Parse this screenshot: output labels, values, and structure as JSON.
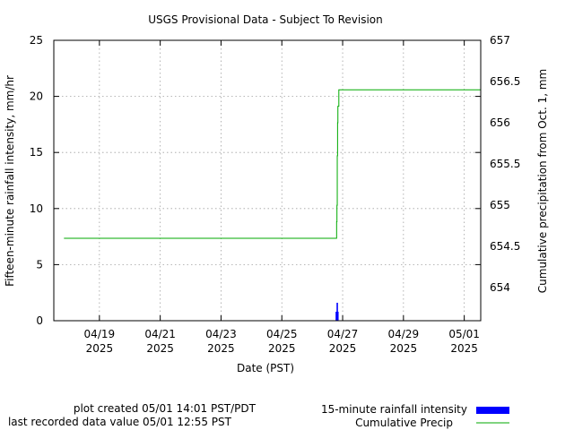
{
  "chart_data": {
    "type": "bar+line",
    "title": "USGS Provisional Data - Subject To Revision",
    "xlabel": "Date (PST)",
    "ylabel_left": "Fifteen-minute rainfall intensity, mm/hr",
    "ylabel_right": "Cumulative precipitation from Oct. 1, mm",
    "x_range": [
      "2025-04-17 12:00",
      "2025-05-01 13:00"
    ],
    "y_left_range": [
      0,
      25
    ],
    "y_right_range": [
      653.6,
      657
    ],
    "y_left_ticks": [
      0,
      5,
      10,
      15,
      20,
      25
    ],
    "y_right_ticks": [
      654,
      654.5,
      655,
      655.5,
      656,
      656.5,
      657
    ],
    "x_ticks": [
      {
        "date": "2025-04-19",
        "line1": "04/19",
        "line2": "2025"
      },
      {
        "date": "2025-04-21",
        "line1": "04/21",
        "line2": "2025"
      },
      {
        "date": "2025-04-23",
        "line1": "04/23",
        "line2": "2025"
      },
      {
        "date": "2025-04-25",
        "line1": "04/25",
        "line2": "2025"
      },
      {
        "date": "2025-04-27",
        "line1": "04/27",
        "line2": "2025"
      },
      {
        "date": "2025-04-29",
        "line1": "04/29",
        "line2": "2025"
      },
      {
        "date": "2025-05-01",
        "line1": "05/01",
        "line2": "2025"
      }
    ],
    "grid": true,
    "series": [
      {
        "name": "15-minute rainfall intensity",
        "type": "bar",
        "axis": "left",
        "color": "#0000ff",
        "points": [
          {
            "x": "2025-04-26 19:00",
            "y": 0.8
          },
          {
            "x": "2025-04-26 19:15",
            "y": 0.8
          },
          {
            "x": "2025-04-26 19:30",
            "y": 0.8
          },
          {
            "x": "2025-04-26 19:45",
            "y": 1.6
          },
          {
            "x": "2025-04-26 20:00",
            "y": 0.8
          },
          {
            "x": "2025-04-26 20:15",
            "y": 0.8
          }
        ]
      },
      {
        "name": "Cumulative Precip",
        "type": "line",
        "axis": "right",
        "color": "#00aa00",
        "step": true,
        "points": [
          {
            "x": "2025-04-17 20:00",
            "y": 654.6
          },
          {
            "x": "2025-04-26 19:00",
            "y": 654.6
          },
          {
            "x": "2025-04-26 19:15",
            "y": 654.8
          },
          {
            "x": "2025-04-26 19:30",
            "y": 655.0
          },
          {
            "x": "2025-04-26 19:45",
            "y": 655.6
          },
          {
            "x": "2025-04-26 20:00",
            "y": 656.0
          },
          {
            "x": "2025-04-26 20:15",
            "y": 656.2
          },
          {
            "x": "2025-04-26 21:00",
            "y": 656.4
          },
          {
            "x": "2025-05-01 12:55",
            "y": 656.4
          }
        ]
      }
    ]
  },
  "footer": {
    "plot_created": "plot created 05/01 14:01 PST/PDT",
    "last_recorded": "last recorded data value 05/01 12:55 PST"
  }
}
